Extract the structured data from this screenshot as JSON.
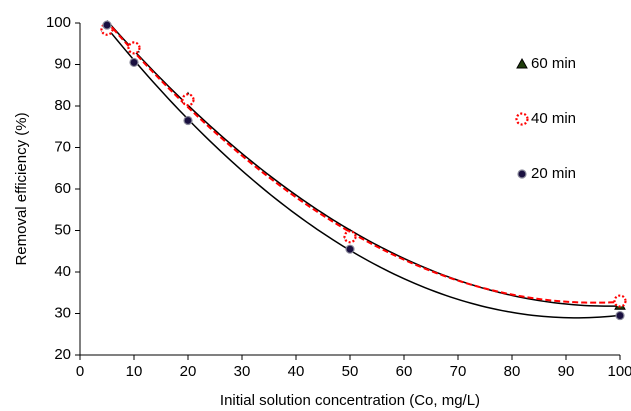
{
  "chart_data": {
    "type": "scatter",
    "x_label": "Initial solution concentration (Co, mg/L)",
    "y_label": "Removal efficiency (%)",
    "xlim": [
      0,
      100
    ],
    "xticks": [
      0,
      10,
      20,
      30,
      40,
      50,
      60,
      70,
      80,
      90,
      100
    ],
    "ylim": [
      20,
      100
    ],
    "yticks": [
      20,
      30,
      40,
      50,
      60,
      70,
      80,
      90,
      100
    ],
    "legend": "right",
    "series": [
      {
        "name": "60 min",
        "marker": "triangle",
        "color": "#1f3d0c",
        "edge": "#000000",
        "x": [
          5,
          10,
          20,
          50,
          100
        ],
        "values": [
          99,
          94,
          82,
          49,
          32
        ],
        "trendline": "poly2",
        "trend_color": "#000000",
        "trend_dash": false
      },
      {
        "name": "40 min",
        "marker": "dotted-circle",
        "color": "#ffffff",
        "edge": "#ff0000",
        "x": [
          5,
          10,
          20,
          50,
          100
        ],
        "values": [
          98.5,
          94,
          81.5,
          48.5,
          33
        ],
        "trendline": "poly2",
        "trend_color": "#ff0000",
        "trend_dash": true
      },
      {
        "name": "20 min",
        "marker": "circle",
        "color": "#1a1040",
        "edge": "#8a8a9a",
        "x": [
          5,
          10,
          20,
          50,
          100
        ],
        "values": [
          99.5,
          90.5,
          76.5,
          45.5,
          29.5
        ],
        "trendline": "poly2",
        "trend_color": "#000000",
        "trend_dash": false
      }
    ]
  }
}
